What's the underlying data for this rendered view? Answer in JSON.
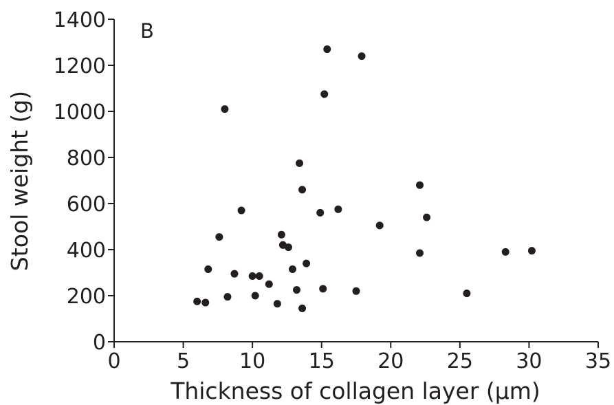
{
  "chart_data": {
    "type": "scatter",
    "panel_label": "B",
    "xlabel": "Thickness of collagen layer (µm)",
    "ylabel": "Stool weight (g)",
    "xlim": [
      0,
      35
    ],
    "ylim": [
      0,
      1400
    ],
    "xticks": [
      0,
      5,
      10,
      15,
      20,
      25,
      30,
      35
    ],
    "yticks": [
      0,
      200,
      400,
      600,
      800,
      1000,
      1200,
      1400
    ],
    "grid": false,
    "legend": "none",
    "marker_color": "#231f20",
    "points": [
      {
        "x": 6.0,
        "y": 175
      },
      {
        "x": 6.6,
        "y": 170
      },
      {
        "x": 6.8,
        "y": 315
      },
      {
        "x": 7.6,
        "y": 455
      },
      {
        "x": 8.0,
        "y": 1010
      },
      {
        "x": 8.2,
        "y": 195
      },
      {
        "x": 8.7,
        "y": 295
      },
      {
        "x": 9.2,
        "y": 570
      },
      {
        "x": 10.0,
        "y": 285
      },
      {
        "x": 10.2,
        "y": 200
      },
      {
        "x": 10.5,
        "y": 285
      },
      {
        "x": 11.2,
        "y": 250
      },
      {
        "x": 11.8,
        "y": 165
      },
      {
        "x": 12.1,
        "y": 465
      },
      {
        "x": 12.2,
        "y": 420
      },
      {
        "x": 12.6,
        "y": 410
      },
      {
        "x": 12.9,
        "y": 315
      },
      {
        "x": 13.2,
        "y": 225
      },
      {
        "x": 13.4,
        "y": 775
      },
      {
        "x": 13.6,
        "y": 660
      },
      {
        "x": 13.6,
        "y": 145
      },
      {
        "x": 13.9,
        "y": 340
      },
      {
        "x": 14.9,
        "y": 560
      },
      {
        "x": 15.1,
        "y": 230
      },
      {
        "x": 15.2,
        "y": 1075
      },
      {
        "x": 15.4,
        "y": 1270
      },
      {
        "x": 16.2,
        "y": 575
      },
      {
        "x": 17.5,
        "y": 220
      },
      {
        "x": 17.9,
        "y": 1240
      },
      {
        "x": 19.2,
        "y": 505
      },
      {
        "x": 22.1,
        "y": 680
      },
      {
        "x": 22.1,
        "y": 385
      },
      {
        "x": 22.6,
        "y": 540
      },
      {
        "x": 25.5,
        "y": 210
      },
      {
        "x": 28.3,
        "y": 390
      },
      {
        "x": 30.2,
        "y": 395
      }
    ]
  }
}
